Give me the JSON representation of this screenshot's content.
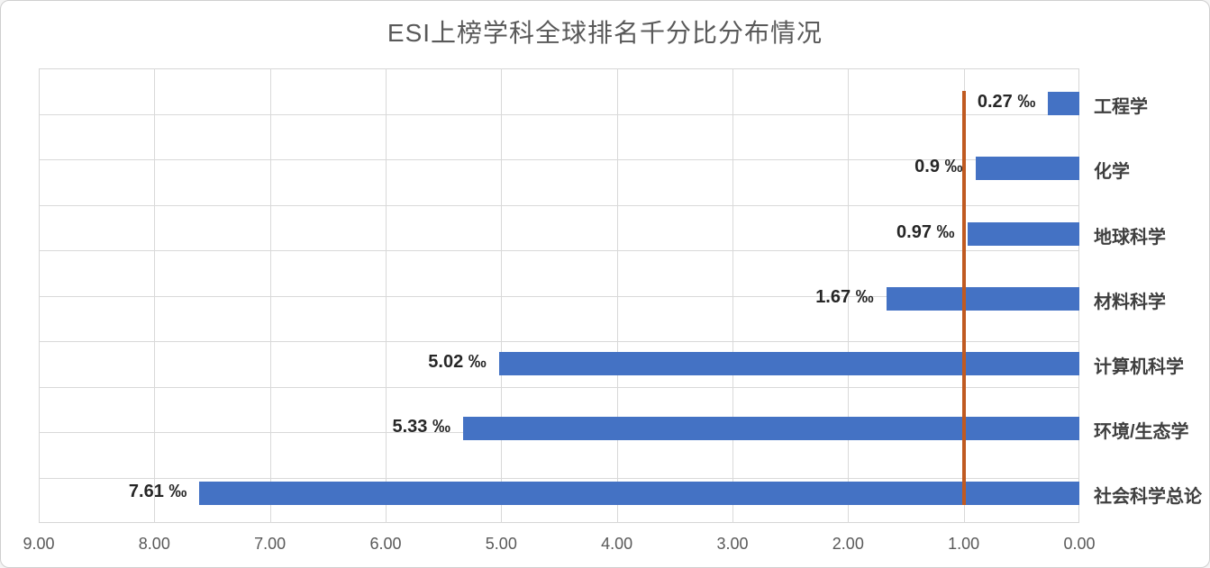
{
  "chart_data": {
    "type": "bar",
    "orientation": "horizontal",
    "title": "ESI上榜学科全球排名千分比分布情况",
    "categories": [
      "工程学",
      "化学",
      "地球科学",
      "材料科学",
      "计算机科学",
      "环境/生态学",
      "社会科学总论"
    ],
    "values": [
      0.27,
      0.9,
      0.97,
      1.67,
      5.02,
      5.33,
      7.61
    ],
    "data_labels": [
      "0.27 ‰",
      "0.9 ‰",
      "0.97 ‰",
      "1.67 ‰",
      "5.02 ‰",
      "5.33 ‰",
      "7.61 ‰"
    ],
    "x_axis": {
      "tick_labels": [
        "9.00",
        "8.00",
        "7.00",
        "6.00",
        "5.00",
        "4.00",
        "3.00",
        "2.00",
        "1.00",
        "0.00"
      ],
      "tick_values": [
        9,
        8,
        7,
        6,
        5,
        4,
        3,
        2,
        1,
        0
      ],
      "min": 0,
      "max": 9,
      "reversed": true
    },
    "reference_line": {
      "value": 1.0,
      "color": "#c05a21"
    },
    "grid": {
      "horizontal_intervals": 10,
      "vertical_gridlines": true,
      "gridline_color": "#d9d9d9"
    },
    "legend": null,
    "styles": {
      "bar_color": "#4472c4",
      "title_color": "#595959",
      "tick_label_color": "#595959",
      "data_label_color": "#262626",
      "category_label_color": "#3f3f3f"
    }
  }
}
